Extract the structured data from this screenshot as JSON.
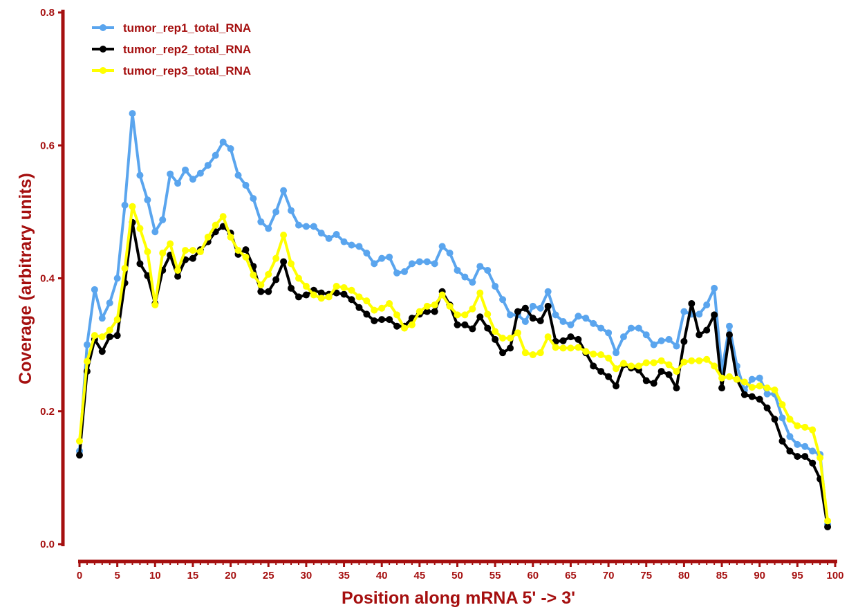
{
  "chart_data": {
    "type": "line",
    "xlabel": "Position along mRNA 5' -> 3'",
    "ylabel": "Coverage (arbitrary units)",
    "xlim": [
      0,
      100
    ],
    "ylim": [
      0,
      0.8
    ],
    "x_ticks": [
      0,
      5,
      10,
      15,
      20,
      25,
      30,
      35,
      40,
      45,
      50,
      55,
      60,
      65,
      70,
      75,
      80,
      85,
      90,
      95,
      100
    ],
    "y_ticks": [
      "0.0",
      "0.2",
      "0.4",
      "0.6",
      "0.8"
    ],
    "legend_position": "top-left",
    "grid": false,
    "axis_color": "#a50f0f",
    "x": [
      0,
      1,
      2,
      3,
      4,
      5,
      6,
      7,
      8,
      9,
      10,
      11,
      12,
      13,
      14,
      15,
      16,
      17,
      18,
      19,
      20,
      21,
      22,
      23,
      24,
      25,
      26,
      27,
      28,
      29,
      30,
      31,
      32,
      33,
      34,
      35,
      36,
      37,
      38,
      39,
      40,
      41,
      42,
      43,
      44,
      45,
      46,
      47,
      48,
      49,
      50,
      51,
      52,
      53,
      54,
      55,
      56,
      57,
      58,
      59,
      60,
      61,
      62,
      63,
      64,
      65,
      66,
      67,
      68,
      69,
      70,
      71,
      72,
      73,
      74,
      75,
      76,
      77,
      78,
      79,
      80,
      81,
      82,
      83,
      84,
      85,
      86,
      87,
      88,
      89,
      90,
      91,
      92,
      93,
      94,
      95,
      96,
      97,
      98,
      99
    ],
    "series": [
      {
        "name": "tumor_rep1_total_RNA",
        "color": "#5aa5ee",
        "values": [
          0.14,
          0.3,
          0.383,
          0.34,
          0.363,
          0.4,
          0.51,
          0.648,
          0.555,
          0.518,
          0.47,
          0.488,
          0.557,
          0.543,
          0.563,
          0.549,
          0.558,
          0.57,
          0.585,
          0.605,
          0.595,
          0.555,
          0.54,
          0.52,
          0.485,
          0.475,
          0.5,
          0.532,
          0.502,
          0.48,
          0.478,
          0.478,
          0.468,
          0.46,
          0.466,
          0.455,
          0.45,
          0.448,
          0.438,
          0.422,
          0.43,
          0.432,
          0.408,
          0.41,
          0.422,
          0.425,
          0.425,
          0.422,
          0.448,
          0.438,
          0.412,
          0.402,
          0.394,
          0.418,
          0.412,
          0.388,
          0.368,
          0.345,
          0.345,
          0.335,
          0.358,
          0.355,
          0.38,
          0.345,
          0.335,
          0.33,
          0.343,
          0.34,
          0.332,
          0.325,
          0.318,
          0.288,
          0.312,
          0.325,
          0.325,
          0.315,
          0.3,
          0.306,
          0.308,
          0.298,
          0.35,
          0.346,
          0.346,
          0.36,
          0.385,
          0.26,
          0.328,
          0.268,
          0.232,
          0.248,
          0.25,
          0.226,
          0.226,
          0.19,
          0.162,
          0.15,
          0.147,
          0.14,
          0.135,
          0.03
        ]
      },
      {
        "name": "tumor_rep2_total_RNA",
        "color": "#000000",
        "values": [
          0.134,
          0.26,
          0.308,
          0.29,
          0.312,
          0.314,
          0.393,
          0.484,
          0.422,
          0.404,
          0.362,
          0.412,
          0.435,
          0.403,
          0.428,
          0.43,
          0.443,
          0.455,
          0.47,
          0.478,
          0.468,
          0.436,
          0.443,
          0.418,
          0.38,
          0.38,
          0.398,
          0.425,
          0.385,
          0.372,
          0.375,
          0.382,
          0.378,
          0.376,
          0.378,
          0.376,
          0.368,
          0.356,
          0.346,
          0.336,
          0.338,
          0.338,
          0.328,
          0.328,
          0.34,
          0.346,
          0.35,
          0.35,
          0.38,
          0.36,
          0.33,
          0.33,
          0.324,
          0.342,
          0.325,
          0.308,
          0.288,
          0.295,
          0.35,
          0.355,
          0.34,
          0.336,
          0.358,
          0.305,
          0.306,
          0.312,
          0.308,
          0.288,
          0.268,
          0.26,
          0.252,
          0.238,
          0.27,
          0.265,
          0.262,
          0.246,
          0.242,
          0.26,
          0.255,
          0.235,
          0.305,
          0.362,
          0.315,
          0.322,
          0.345,
          0.235,
          0.315,
          0.248,
          0.225,
          0.222,
          0.218,
          0.205,
          0.188,
          0.155,
          0.14,
          0.132,
          0.132,
          0.122,
          0.098,
          0.026
        ]
      },
      {
        "name": "tumor_rep3_total_RNA",
        "color": "#ffff00",
        "values": [
          0.155,
          0.275,
          0.314,
          0.312,
          0.322,
          0.338,
          0.415,
          0.508,
          0.475,
          0.44,
          0.36,
          0.438,
          0.452,
          0.412,
          0.442,
          0.442,
          0.44,
          0.462,
          0.48,
          0.493,
          0.462,
          0.442,
          0.432,
          0.405,
          0.39,
          0.406,
          0.43,
          0.465,
          0.422,
          0.4,
          0.388,
          0.375,
          0.37,
          0.372,
          0.388,
          0.386,
          0.382,
          0.372,
          0.366,
          0.352,
          0.355,
          0.362,
          0.345,
          0.325,
          0.33,
          0.35,
          0.358,
          0.36,
          0.375,
          0.358,
          0.345,
          0.345,
          0.354,
          0.378,
          0.346,
          0.32,
          0.31,
          0.31,
          0.318,
          0.288,
          0.285,
          0.288,
          0.312,
          0.296,
          0.295,
          0.295,
          0.296,
          0.29,
          0.286,
          0.285,
          0.28,
          0.264,
          0.272,
          0.268,
          0.268,
          0.273,
          0.273,
          0.276,
          0.27,
          0.26,
          0.274,
          0.276,
          0.276,
          0.278,
          0.268,
          0.25,
          0.252,
          0.248,
          0.244,
          0.236,
          0.238,
          0.235,
          0.232,
          0.21,
          0.188,
          0.178,
          0.176,
          0.172,
          0.13,
          0.035
        ]
      }
    ]
  }
}
